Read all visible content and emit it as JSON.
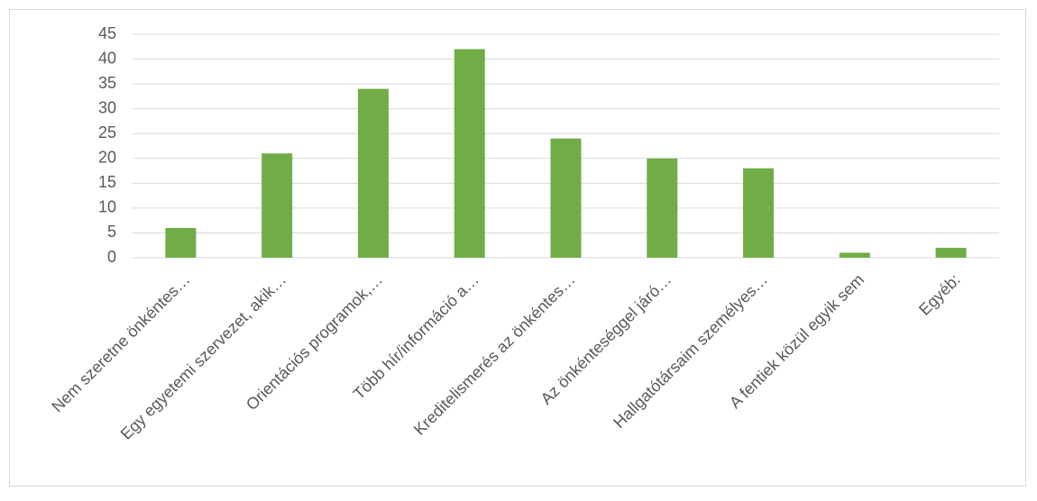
{
  "chart_data": {
    "type": "bar",
    "categories": [
      "Nem szeretne önkéntes…",
      "Egy egyetemi szervezet, akik…",
      "Orientációs programok,…",
      "Több hír/információ a…",
      "Kreditelismerés az önkéntes…",
      "Az önkénteséggel járó…",
      "Hallgatótársaim személyes…",
      "A fentiek közül egyik sem",
      "Egyéb:"
    ],
    "values": [
      6,
      21,
      34,
      42,
      24,
      20,
      18,
      1,
      2
    ],
    "color": "#70ad47",
    "ylim": [
      0,
      45
    ],
    "yticks": [
      0,
      5,
      10,
      15,
      20,
      25,
      30,
      35,
      40,
      45
    ],
    "grid": true
  }
}
